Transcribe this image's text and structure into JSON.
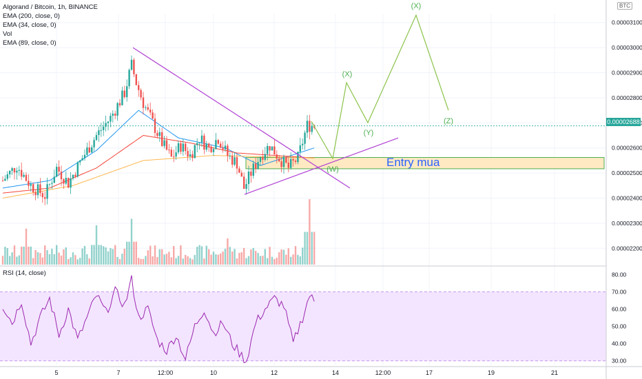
{
  "legend": {
    "title": "Algorand / Bitcoin, 1h, BINANCE",
    "ema200": "EMA (200, close, 0)",
    "ema34": "EMA (34, close, 0)",
    "vol": "Vol",
    "ema89": "EMA (89, close, 0)"
  },
  "currency_label": "BTC",
  "current_price_label": "0.00002688",
  "entry_label": "Entry mua",
  "rsi_label": "RSI (14, close)",
  "wave_labels": [
    "(X)",
    "(Y)",
    "(X)",
    "(Z)",
    "(W)"
  ],
  "colors": {
    "up": "#26a69a",
    "down": "#ef5350",
    "ema34": "#2196f3",
    "ema89": "#f44336",
    "ema200": "#ffb74d",
    "trendline": "#b03fd4",
    "wave": "#8bc34a",
    "rsi": "#9c27b0",
    "rsi_band": "#f3e5ff",
    "entry_zone": "#ffe9c2",
    "entry_border": "#4caf50"
  },
  "chart_data": [
    {
      "type": "candlestick",
      "title": "Algorand / Bitcoin, 1h, BINANCE",
      "y_axis_ticks": [
        "0.00003100",
        "0.00003000",
        "0.00002900",
        "0.00002800",
        "0.00002700",
        "0.00002600",
        "0.00002500",
        "0.00002400",
        "0.00002300",
        "0.00002200"
      ],
      "ylim": [
        2.165e-05,
        3.135e-05
      ],
      "x_axis_ticks": [
        "5",
        "7",
        "12:00",
        "10",
        "12",
        "14",
        "12:00",
        "17",
        "19",
        "21"
      ],
      "current_price": 2.688e-05,
      "price_path": [
        [
          0,
          2.47e-05
        ],
        [
          6,
          2.53e-05
        ],
        [
          12,
          2.45e-05
        ],
        [
          18,
          2.41e-05
        ],
        [
          23,
          2.52e-05
        ],
        [
          28,
          2.46e-05
        ],
        [
          34,
          2.56e-05
        ],
        [
          40,
          2.65e-05
        ],
        [
          46,
          2.72e-05
        ],
        [
          52,
          2.82e-05
        ],
        [
          55,
          2.93e-05
        ],
        [
          57,
          2.86e-05
        ],
        [
          60,
          2.78e-05
        ],
        [
          64,
          2.7e-05
        ],
        [
          68,
          2.62e-05
        ],
        [
          72,
          2.56e-05
        ],
        [
          76,
          2.61e-05
        ],
        [
          80,
          2.57e-05
        ],
        [
          84,
          2.64e-05
        ],
        [
          88,
          2.6e-05
        ],
        [
          92,
          2.64e-05
        ],
        [
          96,
          2.57e-05
        ],
        [
          100,
          2.54e-05
        ],
        [
          103,
          2.44e-05
        ],
        [
          106,
          2.5e-05
        ],
        [
          110,
          2.57e-05
        ],
        [
          114,
          2.61e-05
        ],
        [
          118,
          2.56e-05
        ],
        [
          122,
          2.52e-05
        ],
        [
          126,
          2.56e-05
        ],
        [
          130,
          2.69e-05
        ],
        [
          133,
          2.688e-05
        ]
      ],
      "volume_scale_max": 100,
      "volume_peaks": [
        [
          10,
          55
        ],
        [
          40,
          60
        ],
        [
          55,
          70
        ],
        [
          96,
          40
        ],
        [
          131,
          100
        ]
      ],
      "ema34_path": [
        [
          0,
          2.44e-05
        ],
        [
          20,
          2.47e-05
        ],
        [
          40,
          2.59e-05
        ],
        [
          58,
          2.75e-05
        ],
        [
          75,
          2.64e-05
        ],
        [
          95,
          2.6e-05
        ],
        [
          110,
          2.53e-05
        ],
        [
          133,
          2.6e-05
        ]
      ],
      "ema89_path": [
        [
          0,
          2.42e-05
        ],
        [
          20,
          2.44e-05
        ],
        [
          40,
          2.52e-05
        ],
        [
          60,
          2.65e-05
        ],
        [
          80,
          2.62e-05
        ],
        [
          100,
          2.58e-05
        ],
        [
          133,
          2.56e-05
        ]
      ],
      "ema200_path": [
        [
          0,
          2.4e-05
        ],
        [
          30,
          2.45e-05
        ],
        [
          60,
          2.55e-05
        ],
        [
          90,
          2.57e-05
        ],
        [
          133,
          2.56e-05
        ]
      ]
    },
    {
      "type": "line",
      "title": "RSI (14, close)",
      "y_axis_ticks": [
        "80.00",
        "70.00",
        "60.00",
        "50.00",
        "40.00",
        "30.00"
      ],
      "ylim": [
        27.5,
        82.5
      ],
      "band": [
        30,
        70
      ],
      "x": [
        0,
        4,
        8,
        12,
        16,
        20,
        24,
        28,
        32,
        36,
        40,
        44,
        48,
        52,
        55,
        58,
        62,
        66,
        70,
        74,
        78,
        82,
        86,
        90,
        94,
        98,
        102,
        104,
        108,
        112,
        116,
        120,
        124,
        128,
        131,
        133
      ],
      "values": [
        62,
        52,
        65,
        40,
        55,
        66,
        45,
        60,
        42,
        55,
        68,
        58,
        70,
        62,
        77,
        55,
        60,
        42,
        36,
        45,
        31,
        50,
        60,
        46,
        52,
        40,
        33,
        30,
        52,
        60,
        66,
        62,
        40,
        55,
        68,
        64
      ]
    }
  ]
}
